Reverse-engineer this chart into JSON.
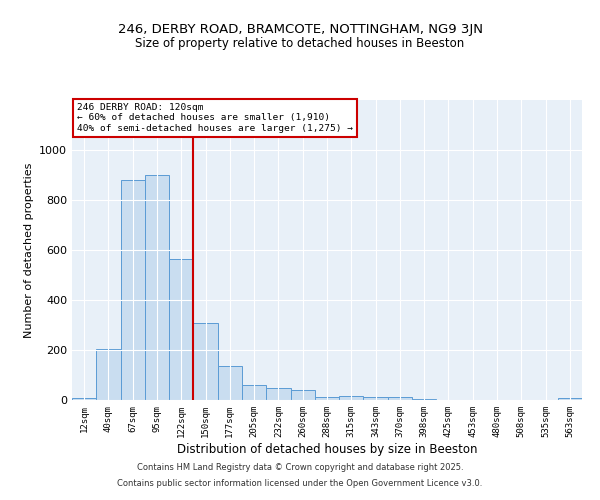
{
  "title1": "246, DERBY ROAD, BRAMCOTE, NOTTINGHAM, NG9 3JN",
  "title2": "Size of property relative to detached houses in Beeston",
  "xlabel": "Distribution of detached houses by size in Beeston",
  "ylabel": "Number of detached properties",
  "categories": [
    "12sqm",
    "40sqm",
    "67sqm",
    "95sqm",
    "122sqm",
    "150sqm",
    "177sqm",
    "205sqm",
    "232sqm",
    "260sqm",
    "288sqm",
    "315sqm",
    "343sqm",
    "370sqm",
    "398sqm",
    "425sqm",
    "453sqm",
    "480sqm",
    "508sqm",
    "535sqm",
    "563sqm"
  ],
  "values": [
    10,
    205,
    880,
    900,
    565,
    310,
    135,
    62,
    48,
    42,
    12,
    18,
    14,
    14,
    5,
    2,
    2,
    1,
    1,
    1,
    10
  ],
  "bar_color": "#c9ddf0",
  "bar_edge_color": "#5b9bd5",
  "vline_color": "#cc0000",
  "annotation_title": "246 DERBY ROAD: 120sqm",
  "annotation_line1": "← 60% of detached houses are smaller (1,910)",
  "annotation_line2": "40% of semi-detached houses are larger (1,275) →",
  "annotation_box_color": "#ffffff",
  "annotation_box_edge": "#cc0000",
  "ylim": [
    0,
    1200
  ],
  "yticks": [
    0,
    200,
    400,
    600,
    800,
    1000
  ],
  "bg_color": "#e8f0f8",
  "footer1": "Contains HM Land Registry data © Crown copyright and database right 2025.",
  "footer2": "Contains public sector information licensed under the Open Government Licence v3.0."
}
